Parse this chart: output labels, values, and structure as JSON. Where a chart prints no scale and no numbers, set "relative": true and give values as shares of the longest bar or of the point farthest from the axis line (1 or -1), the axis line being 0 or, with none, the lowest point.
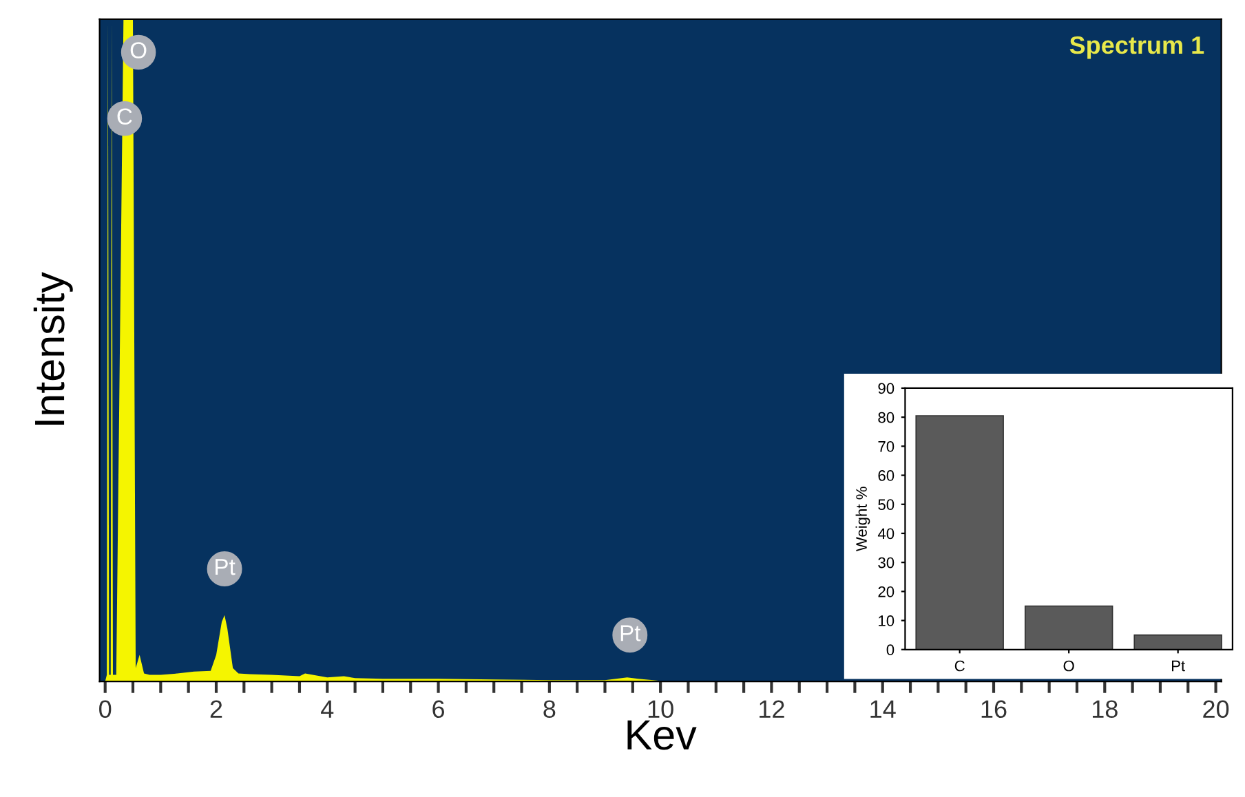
{
  "chart_data": [
    {
      "type": "area",
      "xlabel": "Kev",
      "ylabel": "Intensity",
      "relative": true,
      "x": [
        0,
        0.03,
        0.05,
        0.07,
        0.1,
        0.12,
        0.14,
        0.2,
        0.33,
        0.36,
        0.48,
        0.5,
        0.55,
        0.62,
        0.7,
        0.8,
        1.0,
        1.3,
        1.6,
        1.9,
        2.0,
        2.1,
        2.15,
        2.2,
        2.3,
        2.4,
        2.6,
        3.0,
        3.5,
        3.6,
        4.0,
        4.3,
        4.5,
        5.0,
        6.0,
        7.0,
        8.0,
        9.0,
        9.4,
        9.6,
        10.0,
        12.0,
        15.0,
        20.0
      ],
      "series": [
        {
          "color": "#f5f500",
          "values": [
            0,
            0.01,
            1,
            0.01,
            0.01,
            1,
            0.01,
            0.01,
            1,
            1,
            1,
            1,
            0.02,
            0.04,
            0.012,
            0.01,
            0.01,
            0.012,
            0.015,
            0.016,
            0.04,
            0.09,
            0.1,
            0.08,
            0.02,
            0.012,
            0.011,
            0.01,
            0.008,
            0.012,
            0.006,
            0.008,
            0.005,
            0.004,
            0.004,
            0.003,
            0.002,
            0.002,
            0.006,
            0.004,
            0.001,
            0,
            0,
            0
          ]
        }
      ],
      "xlim": [
        -0.1,
        20.1
      ],
      "xticks": [
        0,
        {
          "value": 0.5,
          "label": null
        },
        {
          "value": 1,
          "label": null
        },
        {
          "value": 1.5,
          "label": null
        },
        2,
        {
          "value": 2.5,
          "label": null
        },
        {
          "value": 3,
          "label": null
        },
        {
          "value": 3.5,
          "label": null
        },
        4,
        {
          "value": 4.5,
          "label": null
        },
        {
          "value": 5,
          "label": null
        },
        {
          "value": 5.5,
          "label": null
        },
        6,
        {
          "value": 6.5,
          "label": null
        },
        {
          "value": 7,
          "label": null
        },
        {
          "value": 7.5,
          "label": null
        },
        8,
        {
          "value": 8.5,
          "label": null
        },
        {
          "value": 9,
          "label": null
        },
        {
          "value": 9.5,
          "label": null
        },
        10,
        {
          "value": 10.5,
          "label": null
        },
        {
          "value": 11,
          "label": null
        },
        {
          "value": 11.5,
          "label": null
        },
        12,
        {
          "value": 12.5,
          "label": null
        },
        {
          "value": 13,
          "label": null
        },
        {
          "value": 13.5,
          "label": null
        },
        14,
        {
          "value": 14.5,
          "label": null
        },
        {
          "value": 15,
          "label": null
        },
        {
          "value": 15.5,
          "label": null
        },
        16,
        {
          "value": 16.5,
          "label": null
        },
        {
          "value": 17,
          "label": null
        },
        {
          "value": 17.5,
          "label": null
        },
        18,
        {
          "value": 18.5,
          "label": null
        },
        {
          "value": 19,
          "label": null
        },
        {
          "value": 19.5,
          "label": null
        },
        20
      ],
      "tick_labels": "x",
      "annotations": [
        {
          "text": "O",
          "x": 0.6,
          "y": 0.95
        },
        {
          "text": "C",
          "x": 0.35,
          "y": 0.85
        },
        {
          "text": "Pt",
          "x": 2.15,
          "y": 0.17
        },
        {
          "text": "Pt",
          "x": 9.45,
          "y": 0.07
        },
        "Spectrum 1"
      ]
    },
    {
      "type": "bar",
      "ylabel": "Weight %",
      "categories": [
        "C",
        "O",
        "Pt"
      ],
      "values": [
        80.5,
        15,
        5
      ],
      "color": "#5a5a5a",
      "ylim": [
        0,
        90
      ],
      "yticks": [
        0,
        10,
        20,
        30,
        40,
        50,
        60,
        70,
        80,
        90
      ]
    }
  ]
}
